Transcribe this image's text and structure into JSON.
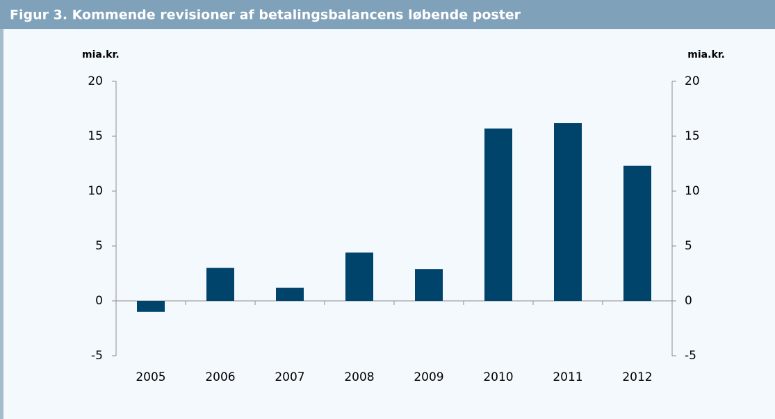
{
  "chart_data": {
    "type": "bar",
    "title": "Figur 3. Kommende revisioner af betalingsbalancens løbende poster",
    "y_label": "mia.kr.",
    "y2_label": "mia.kr.",
    "categories": [
      "2005",
      "2006",
      "2007",
      "2008",
      "2009",
      "2010",
      "2011",
      "2012"
    ],
    "values": [
      -1.0,
      3.0,
      1.2,
      4.4,
      2.9,
      15.7,
      16.2,
      12.3
    ],
    "color": "#00436b",
    "ylim": [
      -5,
      20
    ],
    "yticks": [
      -5,
      0,
      5,
      10,
      15,
      20
    ],
    "y2lim": [
      -5,
      20
    ],
    "y2ticks": [
      -5,
      0,
      5,
      10,
      15,
      20
    ],
    "grid": false
  }
}
